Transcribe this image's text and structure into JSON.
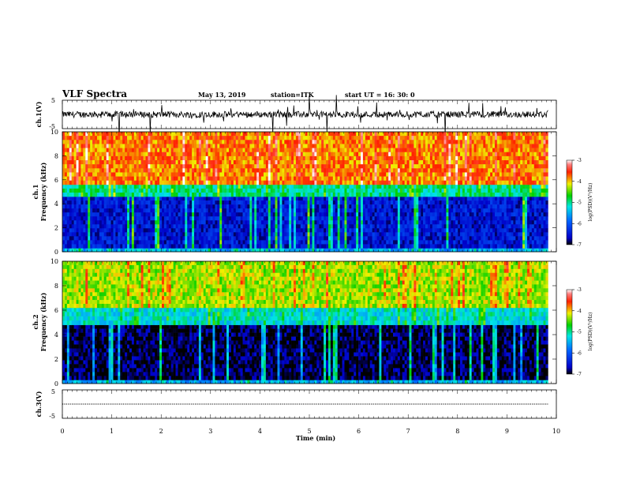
{
  "header": {
    "title": "VLF Spectra",
    "date": "May 13, 2019",
    "station": "station=ITK",
    "start": "start UT = 16: 30: 0"
  },
  "chart_data": [
    {
      "type": "line",
      "panel": "ch1-waveform",
      "ylabel": "ch.1(V)",
      "ylim": [
        -5,
        5
      ],
      "yticks": [
        "5",
        "-5"
      ],
      "xlim": [
        0,
        10
      ]
    },
    {
      "type": "heatmap",
      "panel": "ch1-spectrogram",
      "ylabel": "ch.1\nFrequency (kHz)",
      "ylim": [
        0,
        10
      ],
      "yticks": [
        "0",
        "2",
        "4",
        "6",
        "8",
        "10"
      ],
      "xlim": [
        0,
        9.83
      ],
      "colorbar": {
        "label": "log(PSD)(V²/Hz)",
        "range": [
          -7,
          -3
        ],
        "ticks": [
          "-3",
          "-4",
          "-5",
          "-6",
          "-7"
        ]
      },
      "bands_khz": [
        {
          "from": 0,
          "to": 0.3,
          "level": -5.5
        },
        {
          "from": 0.3,
          "to": 4.6,
          "level": -6.5
        },
        {
          "from": 4.6,
          "to": 5.6,
          "level": -5.0
        },
        {
          "from": 5.6,
          "to": 10,
          "level": -3.8
        }
      ]
    },
    {
      "type": "heatmap",
      "panel": "ch2-spectrogram",
      "ylabel": "ch.2\nFrequency (kHz)",
      "ylim": [
        0,
        10
      ],
      "yticks": [
        "0",
        "2",
        "4",
        "6",
        "8",
        "10"
      ],
      "xlim": [
        0,
        9.83
      ],
      "colorbar": {
        "label": "log(PSD)(V²/Hz)",
        "range": [
          -7,
          -3
        ],
        "ticks": [
          "-3",
          "-4",
          "-5",
          "-6",
          "-7"
        ]
      },
      "bands_khz": [
        {
          "from": 0,
          "to": 0.3,
          "level": -5.5
        },
        {
          "from": 0.3,
          "to": 4.8,
          "level": -6.9
        },
        {
          "from": 4.8,
          "to": 6.2,
          "level": -5.2
        },
        {
          "from": 6.2,
          "to": 10,
          "level": -4.3
        }
      ]
    },
    {
      "type": "line",
      "panel": "ch3-waveform",
      "ylabel": "ch.3(V)",
      "ylim": [
        -5,
        5
      ],
      "yticks": [
        "5",
        "-5"
      ],
      "xlim": [
        0,
        10
      ],
      "level": 0
    }
  ],
  "xaxis": {
    "label": "Time (min)",
    "ticks": [
      "0",
      "1",
      "2",
      "3",
      "4",
      "5",
      "6",
      "7",
      "8",
      "9",
      "10"
    ]
  }
}
